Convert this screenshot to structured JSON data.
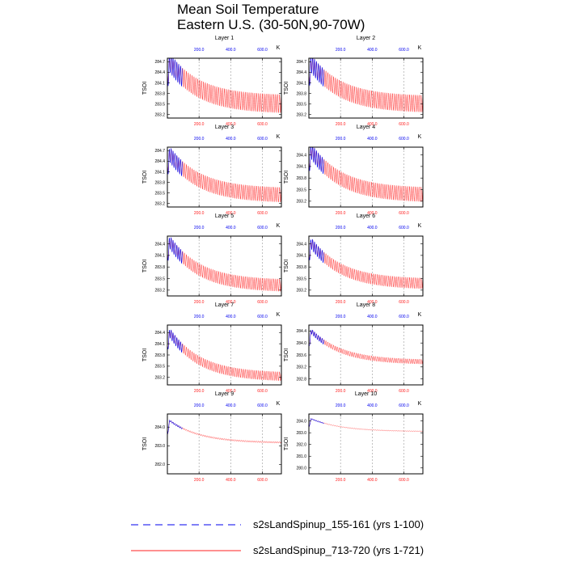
{
  "chart_data": {
    "type": "line",
    "title_line1": "Mean Soil Temperature",
    "title_line2": "Eastern U.S. (30-50N,90-70W)",
    "ylabel": "TSOI",
    "unit": "K",
    "xlim": [
      0,
      720
    ],
    "xticks": [
      200,
      400,
      600
    ],
    "xtick_labels": [
      "200.0",
      "400.0",
      "600.0"
    ],
    "colors": {
      "short": "#0000ee",
      "long": "#ff2020"
    },
    "legend": [
      {
        "label": "s2sLandSpinup_155-161 (yrs 1-100)",
        "color": "#0000ee",
        "dash": true
      },
      {
        "label": "s2sLandSpinup_713-720 (yrs 1-721)",
        "color": "#ff2020",
        "dash": false
      }
    ],
    "panels": [
      {
        "title": "Layer 1",
        "ylim": [
          283.1,
          284.8
        ],
        "ticks": [
          "284.7",
          "284.4",
          "284.1",
          "283.8",
          "283.5",
          "283.2"
        ],
        "start": 284.05,
        "peak": 284.68,
        "final": 283.48,
        "amp": 0.26
      },
      {
        "title": "Layer 2",
        "ylim": [
          283.1,
          284.8
        ],
        "ticks": [
          "284.7",
          "284.4",
          "284.1",
          "283.8",
          "283.5",
          "283.2"
        ],
        "start": 284.05,
        "peak": 284.65,
        "final": 283.48,
        "amp": 0.24
      },
      {
        "title": "Layer 3",
        "ylim": [
          283.1,
          284.8
        ],
        "ticks": [
          "284.7",
          "284.4",
          "284.1",
          "283.8",
          "283.5",
          "283.2"
        ],
        "start": 284.05,
        "peak": 284.6,
        "final": 283.42,
        "amp": 0.21
      },
      {
        "title": "Layer 4",
        "ylim": [
          283.05,
          284.6
        ],
        "ticks": [
          "284.4",
          "284.1",
          "283.8",
          "283.5",
          "283.2"
        ],
        "start": 284.0,
        "peak": 284.5,
        "final": 283.35,
        "amp": 0.19
      },
      {
        "title": "Layer 5",
        "ylim": [
          283.05,
          284.6
        ],
        "ticks": [
          "284.4",
          "284.1",
          "283.8",
          "283.5",
          "283.2"
        ],
        "start": 283.95,
        "peak": 284.45,
        "final": 283.3,
        "amp": 0.16
      },
      {
        "title": "Layer 6",
        "ylim": [
          283.05,
          284.6
        ],
        "ticks": [
          "284.4",
          "284.1",
          "283.8",
          "283.5",
          "283.2"
        ],
        "start": 283.95,
        "peak": 284.42,
        "final": 283.35,
        "amp": 0.14
      },
      {
        "title": "Layer 7",
        "ylim": [
          283.0,
          284.6
        ],
        "ticks": [
          "284.4",
          "284.1",
          "283.8",
          "283.5",
          "283.2"
        ],
        "start": 283.9,
        "peak": 284.4,
        "final": 283.2,
        "amp": 0.12
      },
      {
        "title": "Layer 8",
        "ylim": [
          282.6,
          284.6
        ],
        "ticks": [
          "284.4",
          "284.0",
          "283.6",
          "283.2",
          "282.8"
        ],
        "start": 283.8,
        "peak": 284.4,
        "final": 283.35,
        "amp": 0.08
      },
      {
        "title": "Layer 9",
        "ylim": [
          281.5,
          284.7
        ],
        "ticks": [
          "284.0",
          "283.0",
          "282.0"
        ],
        "start": 283.5,
        "peak": 284.35,
        "final": 283.15,
        "amp": 0.04
      },
      {
        "title": "Layer 10",
        "ylim": [
          279.5,
          284.6
        ],
        "ticks": [
          "284.0",
          "283.0",
          "282.0",
          "281.0",
          "280.0"
        ],
        "start": 283.4,
        "peak": 284.2,
        "final": 283.1,
        "amp": 0.03
      }
    ]
  }
}
